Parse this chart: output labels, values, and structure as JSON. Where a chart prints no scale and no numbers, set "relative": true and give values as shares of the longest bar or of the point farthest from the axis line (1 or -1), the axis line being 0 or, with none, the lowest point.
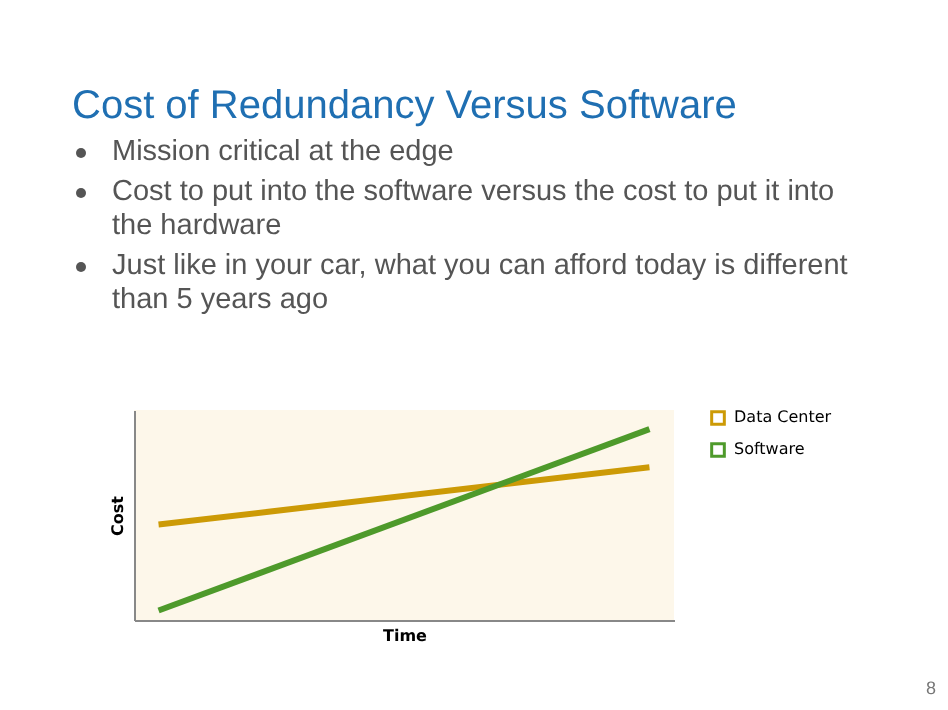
{
  "chart_data": {
    "type": "line",
    "title": "Cost of Redundancy Versus Software",
    "annotations": [
      "Mission critical at the edge",
      "Cost to put into the software versus the cost to put it into the hardware",
      "Just like in your car, what you can afford today is different than 5 years ago",
      "8"
    ],
    "categories": [
      null,
      null
    ],
    "relative": true,
    "xlabel": "Time",
    "ylabel": "Cost",
    "legend": "right",
    "series": [
      {
        "name": "Data Center",
        "color": "#cc9a06",
        "values": [
          0.5,
          0.8
        ]
      },
      {
        "name": "Software",
        "color": "#4e9a2b",
        "values": [
          0.05,
          1
        ]
      }
    ]
  }
}
